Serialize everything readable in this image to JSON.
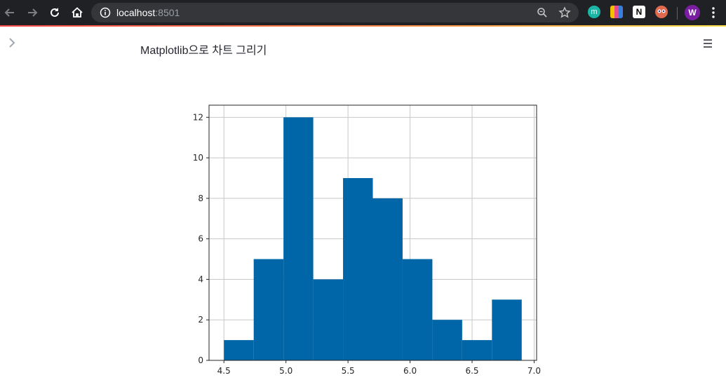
{
  "browser": {
    "url_host": "localhost",
    "url_port": ":8501",
    "profile_initial": "W",
    "icons": {
      "back": "arrow-left-icon",
      "forward": "arrow-right-icon",
      "reload": "reload-icon",
      "home": "home-icon",
      "info": "info-icon",
      "zoom": "zoom-icon",
      "bookmark": "star-icon",
      "menu": "kebab-menu-icon"
    },
    "extensions": [
      {
        "name": "m-extension-icon",
        "color": "#1ab5a5",
        "label": "m"
      },
      {
        "name": "grid-extension-icon",
        "color": "#f2c200",
        "label": ""
      },
      {
        "name": "notion-extension-icon",
        "color": "#ffffff",
        "label": "N"
      },
      {
        "name": "mascot-extension-icon",
        "color": "#e06a4f",
        "label": ""
      }
    ]
  },
  "app": {
    "title": "Matplotlib으로 차트 그리기",
    "accent_colors": [
      "#ff4b4b",
      "#ffe14b"
    ]
  },
  "chart_data": {
    "type": "bar",
    "title": "",
    "xlabel": "",
    "ylabel": "",
    "bin_edges": [
      4.5,
      4.74,
      4.98,
      5.22,
      5.46,
      5.7,
      5.94,
      6.18,
      6.42,
      6.66,
      6.9
    ],
    "values": [
      1,
      5,
      12,
      4,
      9,
      8,
      5,
      2,
      1,
      3
    ],
    "xlim": [
      4.38,
      7.02
    ],
    "ylim": [
      0,
      12.6
    ],
    "xticks": [
      4.5,
      5.0,
      5.5,
      6.0,
      6.5,
      7.0
    ],
    "xtick_labels": [
      "4.5",
      "5.0",
      "5.5",
      "6.0",
      "6.5",
      "7.0"
    ],
    "yticks": [
      0,
      2,
      4,
      6,
      8,
      10,
      12
    ],
    "ytick_labels": [
      "0",
      "2",
      "4",
      "6",
      "8",
      "10",
      "12"
    ],
    "grid": true,
    "bar_color": "#0066a8",
    "grid_color": "#c8c8c8"
  }
}
